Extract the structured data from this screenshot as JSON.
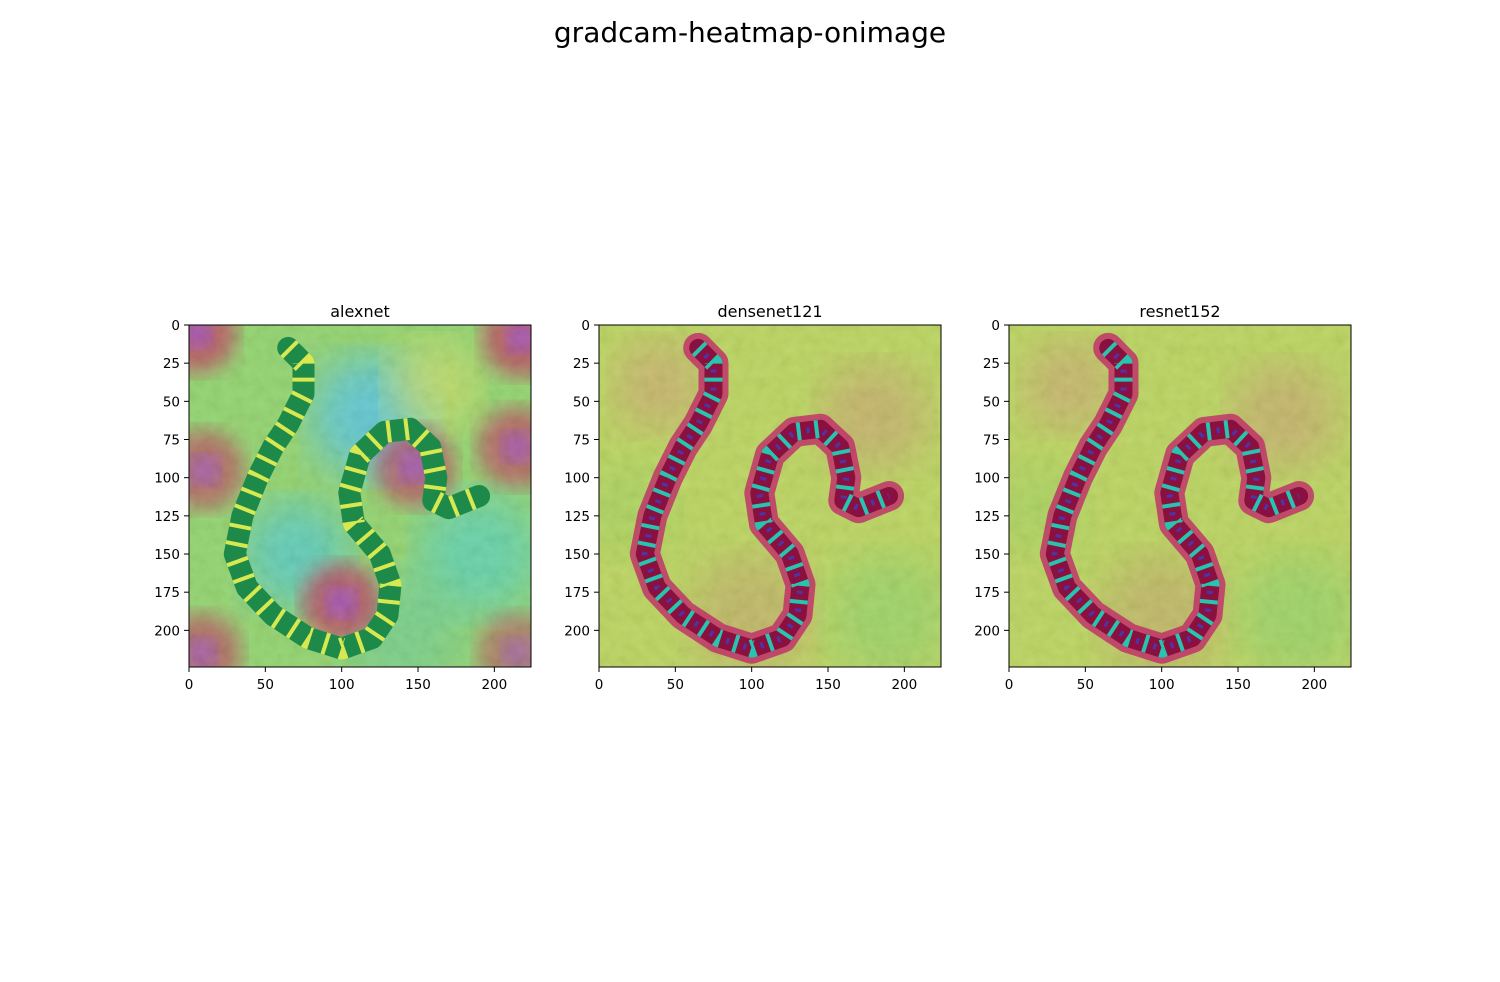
{
  "figure": {
    "suptitle": "gradcam-heatmap-onimage"
  },
  "chart_data": [
    {
      "type": "heatmap",
      "title": "alexnet",
      "xlabel": "",
      "ylabel": "",
      "image_shape": [
        224,
        224
      ],
      "xlim": [
        0,
        224
      ],
      "ylim": [
        224,
        0
      ],
      "xticks": [
        0,
        50,
        100,
        150,
        200
      ],
      "yticks": [
        0,
        25,
        50,
        75,
        100,
        125,
        150,
        175,
        200
      ],
      "colormap": "jet-like overlay on photo",
      "hotspots": [
        {
          "x": 5,
          "y": 5,
          "intensity": 1.0
        },
        {
          "x": 218,
          "y": 8,
          "intensity": 1.0
        },
        {
          "x": 10,
          "y": 95,
          "intensity": 0.85
        },
        {
          "x": 215,
          "y": 80,
          "intensity": 0.9
        },
        {
          "x": 148,
          "y": 93,
          "intensity": 0.9
        },
        {
          "x": 100,
          "y": 182,
          "intensity": 1.0
        },
        {
          "x": 215,
          "y": 215,
          "intensity": 0.7
        },
        {
          "x": 8,
          "y": 215,
          "intensity": 0.85
        }
      ]
    },
    {
      "type": "heatmap",
      "title": "densenet121",
      "xlabel": "",
      "ylabel": "",
      "image_shape": [
        224,
        224
      ],
      "xlim": [
        0,
        224
      ],
      "ylim": [
        224,
        0
      ],
      "xticks": [
        0,
        50,
        100,
        150,
        200
      ],
      "yticks": [
        0,
        25,
        50,
        75,
        100,
        125,
        150,
        175,
        200
      ],
      "colormap": "jet-like overlay on photo",
      "hotspots": []
    },
    {
      "type": "heatmap",
      "title": "resnet152",
      "xlabel": "",
      "ylabel": "",
      "image_shape": [
        224,
        224
      ],
      "xlim": [
        0,
        224
      ],
      "ylim": [
        224,
        0
      ],
      "xticks": [
        0,
        50,
        100,
        150,
        200
      ],
      "yticks": [
        0,
        25,
        50,
        75,
        100,
        125,
        150,
        175,
        200
      ],
      "colormap": "jet-like overlay on photo",
      "hotspots": []
    }
  ]
}
